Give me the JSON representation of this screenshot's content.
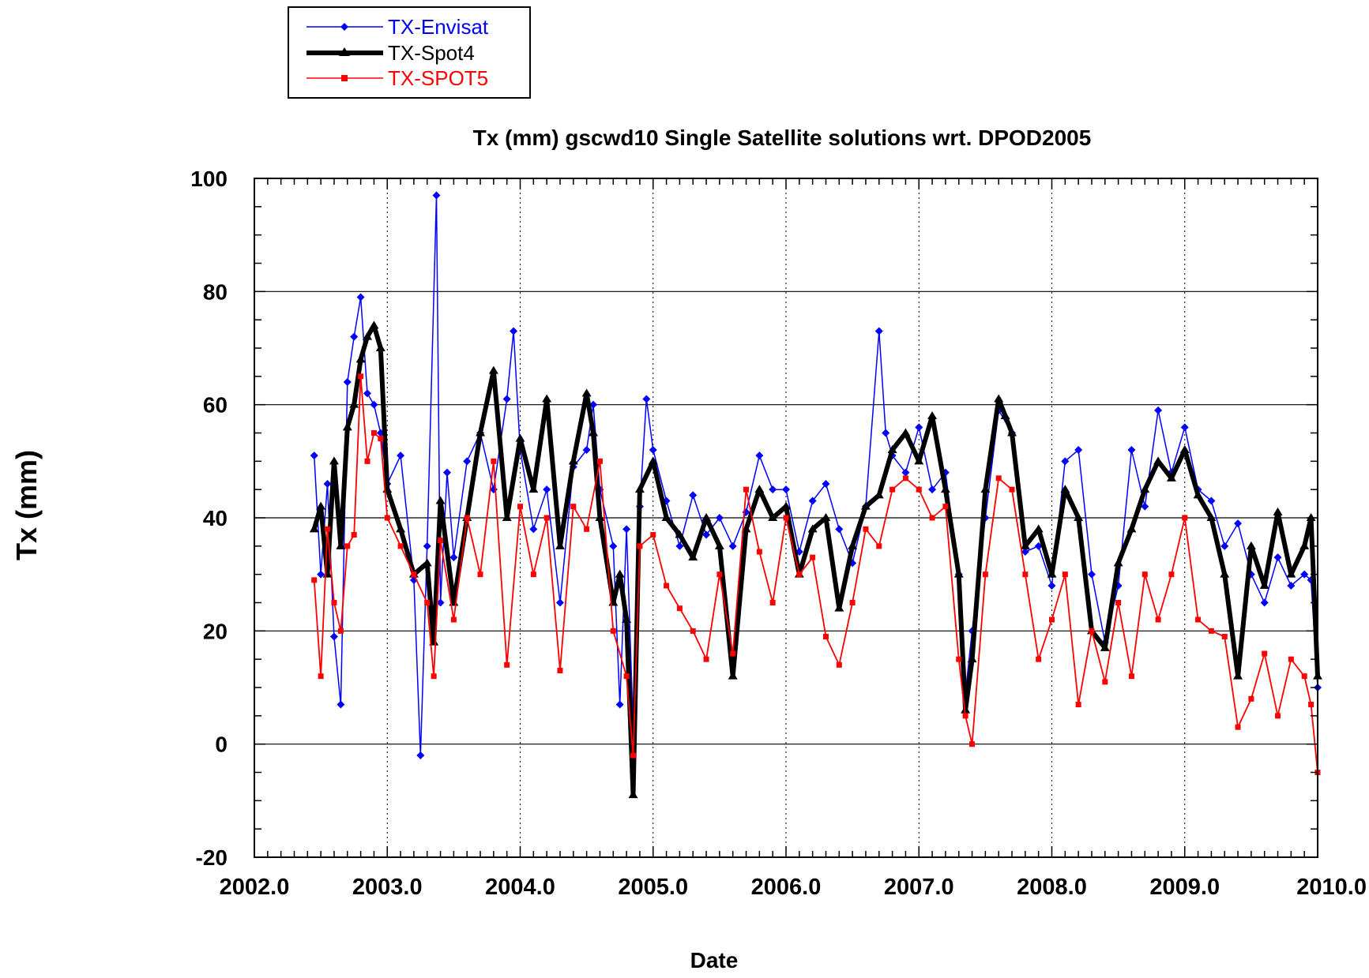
{
  "chart_data": {
    "type": "line",
    "title": "Tx (mm) gscwd10 Single Satellite solutions wrt. DPOD2005",
    "xlabel": "Date",
    "ylabel": "Tx (mm)",
    "xlim": [
      2002.0,
      2010.0
    ],
    "ylim": [
      -20,
      100
    ],
    "x_ticks": [
      2002.0,
      2003.0,
      2004.0,
      2005.0,
      2006.0,
      2007.0,
      2008.0,
      2009.0,
      2010.0
    ],
    "x_tick_labels": [
      "2002.0",
      "2003.0",
      "2004.0",
      "2005.0",
      "2006.0",
      "2007.0",
      "2008.0",
      "2009.0",
      "2010.0"
    ],
    "y_ticks": [
      -20,
      0,
      20,
      40,
      60,
      80,
      100
    ],
    "y_tick_labels": [
      "-20",
      "0",
      "20",
      "40",
      "60",
      "80",
      "100"
    ],
    "grid": {
      "x": "dotted",
      "y": "solid"
    },
    "legend_position": "top-left, above plot",
    "series": [
      {
        "name": "TX-Envisat",
        "color": "#0000ff",
        "marker": "diamond",
        "x": [
          2002.45,
          2002.5,
          2002.55,
          2002.6,
          2002.65,
          2002.7,
          2002.75,
          2002.8,
          2002.85,
          2002.9,
          2002.95,
          2003.0,
          2003.1,
          2003.2,
          2003.25,
          2003.3,
          2003.37,
          2003.4,
          2003.45,
          2003.5,
          2003.6,
          2003.7,
          2003.8,
          2003.9,
          2003.95,
          2004.0,
          2004.1,
          2004.2,
          2004.3,
          2004.4,
          2004.5,
          2004.55,
          2004.6,
          2004.7,
          2004.75,
          2004.8,
          2004.85,
          2004.9,
          2004.95,
          2005.0,
          2005.1,
          2005.2,
          2005.3,
          2005.4,
          2005.5,
          2005.6,
          2005.7,
          2005.8,
          2005.9,
          2006.0,
          2006.1,
          2006.2,
          2006.3,
          2006.4,
          2006.5,
          2006.6,
          2006.7,
          2006.75,
          2006.8,
          2006.9,
          2007.0,
          2007.1,
          2007.2,
          2007.3,
          2007.35,
          2007.4,
          2007.5,
          2007.6,
          2007.7,
          2007.8,
          2007.9,
          2008.0,
          2008.1,
          2008.2,
          2008.3,
          2008.4,
          2008.5,
          2008.6,
          2008.7,
          2008.8,
          2008.9,
          2009.0,
          2009.1,
          2009.2,
          2009.3,
          2009.4,
          2009.5,
          2009.6,
          2009.7,
          2009.8,
          2009.9,
          2009.95,
          2010.0
        ],
        "y": [
          51,
          30,
          46,
          19,
          7,
          64,
          72,
          79,
          62,
          60,
          55,
          46,
          51,
          29,
          -2,
          35,
          97,
          25,
          48,
          33,
          50,
          55,
          45,
          61,
          73,
          52,
          38,
          45,
          25,
          49,
          52,
          60,
          45,
          35,
          7,
          38,
          3,
          42,
          61,
          52,
          43,
          35,
          44,
          37,
          40,
          35,
          41,
          51,
          45,
          45,
          34,
          43,
          46,
          38,
          32,
          42,
          73,
          55,
          51,
          48,
          56,
          45,
          48,
          30,
          9,
          20,
          40,
          59,
          55,
          34,
          35,
          28,
          50,
          52,
          30,
          18,
          28,
          52,
          42,
          59,
          48,
          56,
          45,
          43,
          35,
          39,
          30,
          25,
          33,
          28,
          30,
          29,
          10
        ]
      },
      {
        "name": "TX-Spot4",
        "color": "#000000",
        "marker": "triangle",
        "x": [
          2002.45,
          2002.5,
          2002.55,
          2002.6,
          2002.65,
          2002.7,
          2002.75,
          2002.8,
          2002.85,
          2002.9,
          2002.95,
          2003.0,
          2003.1,
          2003.2,
          2003.3,
          2003.35,
          2003.4,
          2003.5,
          2003.6,
          2003.7,
          2003.8,
          2003.9,
          2004.0,
          2004.1,
          2004.2,
          2004.3,
          2004.4,
          2004.5,
          2004.55,
          2004.6,
          2004.7,
          2004.75,
          2004.8,
          2004.85,
          2004.9,
          2005.0,
          2005.1,
          2005.2,
          2005.3,
          2005.4,
          2005.5,
          2005.6,
          2005.7,
          2005.8,
          2005.9,
          2006.0,
          2006.1,
          2006.2,
          2006.3,
          2006.4,
          2006.5,
          2006.6,
          2006.7,
          2006.8,
          2006.9,
          2007.0,
          2007.1,
          2007.2,
          2007.3,
          2007.35,
          2007.4,
          2007.5,
          2007.6,
          2007.65,
          2007.7,
          2007.8,
          2007.9,
          2008.0,
          2008.1,
          2008.2,
          2008.3,
          2008.4,
          2008.5,
          2008.6,
          2008.7,
          2008.8,
          2008.9,
          2009.0,
          2009.1,
          2009.2,
          2009.3,
          2009.4,
          2009.5,
          2009.6,
          2009.7,
          2009.8,
          2009.9,
          2009.95,
          2010.0
        ],
        "y": [
          38,
          42,
          30,
          50,
          35,
          56,
          60,
          68,
          72,
          74,
          70,
          45,
          38,
          30,
          32,
          18,
          43,
          25,
          40,
          55,
          66,
          40,
          54,
          45,
          61,
          35,
          50,
          62,
          55,
          40,
          25,
          30,
          22,
          -9,
          45,
          50,
          40,
          37,
          33,
          40,
          35,
          12,
          38,
          45,
          40,
          42,
          30,
          38,
          40,
          24,
          35,
          42,
          44,
          52,
          55,
          50,
          58,
          45,
          30,
          6,
          15,
          45,
          61,
          58,
          55,
          35,
          38,
          30,
          45,
          40,
          20,
          17,
          32,
          38,
          45,
          50,
          47,
          52,
          44,
          40,
          30,
          12,
          35,
          28,
          41,
          30,
          35,
          40,
          12
        ]
      },
      {
        "name": "TX-SPOT5",
        "color": "#ff0000",
        "marker": "square",
        "x": [
          2002.45,
          2002.5,
          2002.55,
          2002.6,
          2002.65,
          2002.7,
          2002.75,
          2002.8,
          2002.85,
          2002.9,
          2002.95,
          2003.0,
          2003.1,
          2003.2,
          2003.3,
          2003.35,
          2003.4,
          2003.5,
          2003.6,
          2003.7,
          2003.8,
          2003.9,
          2004.0,
          2004.1,
          2004.2,
          2004.3,
          2004.4,
          2004.5,
          2004.6,
          2004.7,
          2004.8,
          2004.85,
          2004.9,
          2005.0,
          2005.1,
          2005.2,
          2005.3,
          2005.4,
          2005.5,
          2005.6,
          2005.7,
          2005.8,
          2005.9,
          2006.0,
          2006.1,
          2006.2,
          2006.3,
          2006.4,
          2006.5,
          2006.6,
          2006.7,
          2006.8,
          2006.9,
          2007.0,
          2007.1,
          2007.2,
          2007.3,
          2007.35,
          2007.4,
          2007.5,
          2007.6,
          2007.7,
          2007.8,
          2007.9,
          2008.0,
          2008.1,
          2008.2,
          2008.3,
          2008.4,
          2008.5,
          2008.6,
          2008.7,
          2008.8,
          2008.9,
          2009.0,
          2009.1,
          2009.2,
          2009.3,
          2009.4,
          2009.5,
          2009.6,
          2009.7,
          2009.8,
          2009.9,
          2009.95,
          2010.0
        ],
        "y": [
          29,
          12,
          38,
          25,
          20,
          35,
          37,
          65,
          50,
          55,
          54,
          40,
          35,
          30,
          25,
          12,
          36,
          22,
          40,
          30,
          50,
          14,
          42,
          30,
          40,
          13,
          42,
          38,
          50,
          20,
          12,
          -2,
          35,
          37,
          28,
          24,
          20,
          15,
          30,
          16,
          45,
          34,
          25,
          40,
          30,
          33,
          19,
          14,
          25,
          38,
          35,
          45,
          47,
          45,
          40,
          42,
          15,
          5,
          0,
          30,
          47,
          45,
          30,
          15,
          22,
          30,
          7,
          20,
          11,
          25,
          12,
          30,
          22,
          30,
          40,
          22,
          20,
          19,
          3,
          8,
          16,
          5,
          15,
          12,
          7,
          -5
        ]
      }
    ]
  }
}
